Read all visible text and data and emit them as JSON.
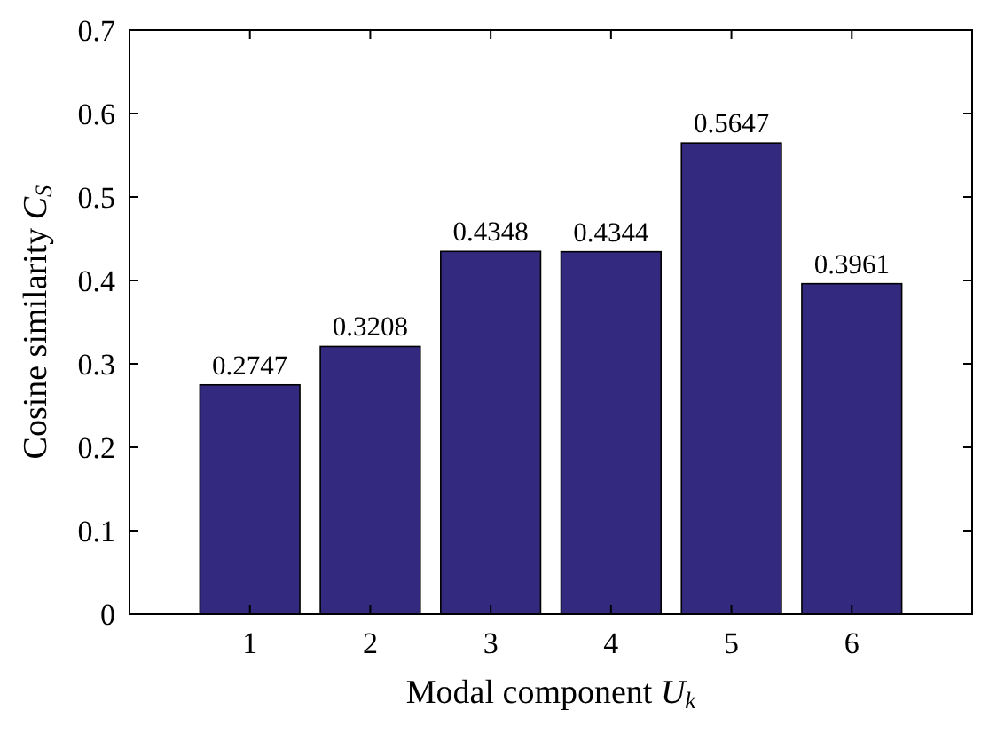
{
  "chart_data": {
    "type": "bar",
    "xlabel": "Modal component U$_{k}$",
    "ylabel": "Cosine similarity C$_{S}$",
    "categories": [
      "1",
      "2",
      "3",
      "4",
      "5",
      "6"
    ],
    "values": [
      0.2747,
      0.3208,
      0.4348,
      0.4344,
      0.5647,
      0.3961
    ],
    "color": "#332a7f",
    "data_labels": true,
    "ylim": [
      0,
      0.7
    ],
    "yticks": [
      0,
      0.1,
      0.2,
      0.3,
      0.4,
      0.5,
      0.6,
      0.7
    ],
    "grid": false
  }
}
